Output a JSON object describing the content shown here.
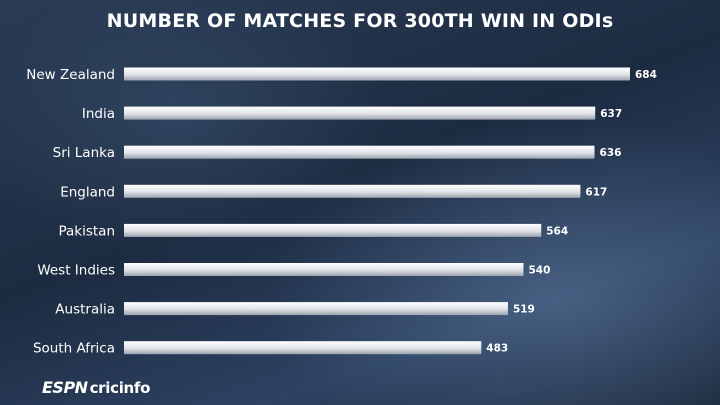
{
  "chart_data": {
    "type": "bar",
    "orientation": "horizontal",
    "title": "NUMBER OF MATCHES FOR 300TH WIN IN ODIs",
    "categories": [
      "New Zealand",
      "India",
      "Sri Lanka",
      "England",
      "Pakistan",
      "West Indies",
      "Australia",
      "South Africa"
    ],
    "values": [
      684,
      637,
      636,
      617,
      564,
      540,
      519,
      483
    ],
    "xlim": [
      0,
      684
    ],
    "grid": false,
    "bar_color": "#e4e6ea"
  },
  "brand": {
    "part1": "ESPN",
    "part2": "cricinfo"
  }
}
